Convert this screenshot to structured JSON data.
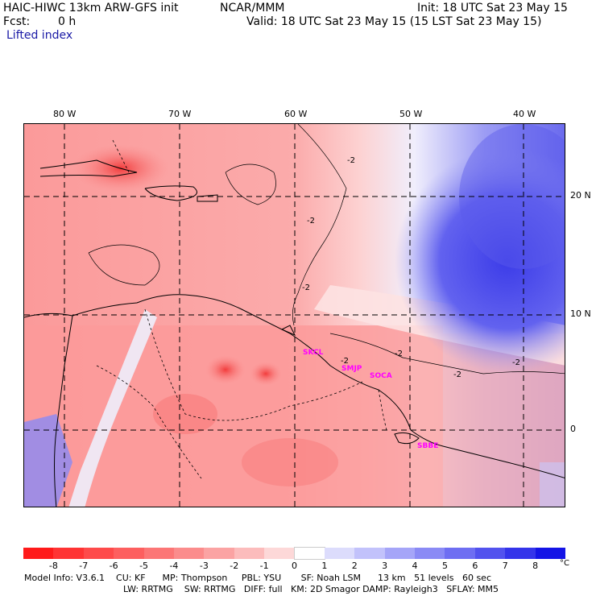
{
  "header": {
    "title": "HAIC-HIWC 13km ARW-GFS init",
    "org": "NCAR/MMM",
    "init": "Init: 18 UTC Sat 23 May 15",
    "fcst_label": "Fcst:",
    "fcst_value": "0 h",
    "valid": "Valid: 18 UTC Sat 23 May 15 (15 LST Sat 23 May 15)",
    "field": "Lifted index"
  },
  "map": {
    "lon_labels": [
      "80 W",
      "70 W",
      "60 W",
      "50 W",
      "40 W"
    ],
    "lat_labels": [
      "20 N",
      "10 N",
      "0"
    ],
    "stations": [
      "SKCL",
      "SMJP",
      "SOCA",
      "SBBE"
    ],
    "contour_label": "-2"
  },
  "colorbar": {
    "ticks": [
      "-8",
      "-7",
      "-6",
      "-5",
      "-4",
      "-3",
      "-2",
      "-1",
      "0",
      "1",
      "2",
      "3",
      "4",
      "5",
      "6",
      "7",
      "8"
    ],
    "unit": "°C",
    "colors": [
      "#ff1a1a",
      "#ff3333",
      "#fe4a4a",
      "#fd5f5f",
      "#fc7676",
      "#fb8c8c",
      "#fba3a3",
      "#fcbcbc",
      "#fdd8d8",
      "#ffffff",
      "#dcdcfc",
      "#c2c2fb",
      "#a5a5f8",
      "#8a8af5",
      "#6e6ef2",
      "#5252ee",
      "#3434ea",
      "#1414e6"
    ]
  },
  "footer": {
    "line1": "Model Info: V3.6.1    CU: KF      MP: Thompson     PBL: YSU       SF: Noah LSM      13 km   51 levels   60 sec",
    "line2": "LW: RRTMG    SW: RRTMG   DIFF: full   KM: 2D Smagor DAMP: Rayleigh3   SFLAY: MM5"
  }
}
